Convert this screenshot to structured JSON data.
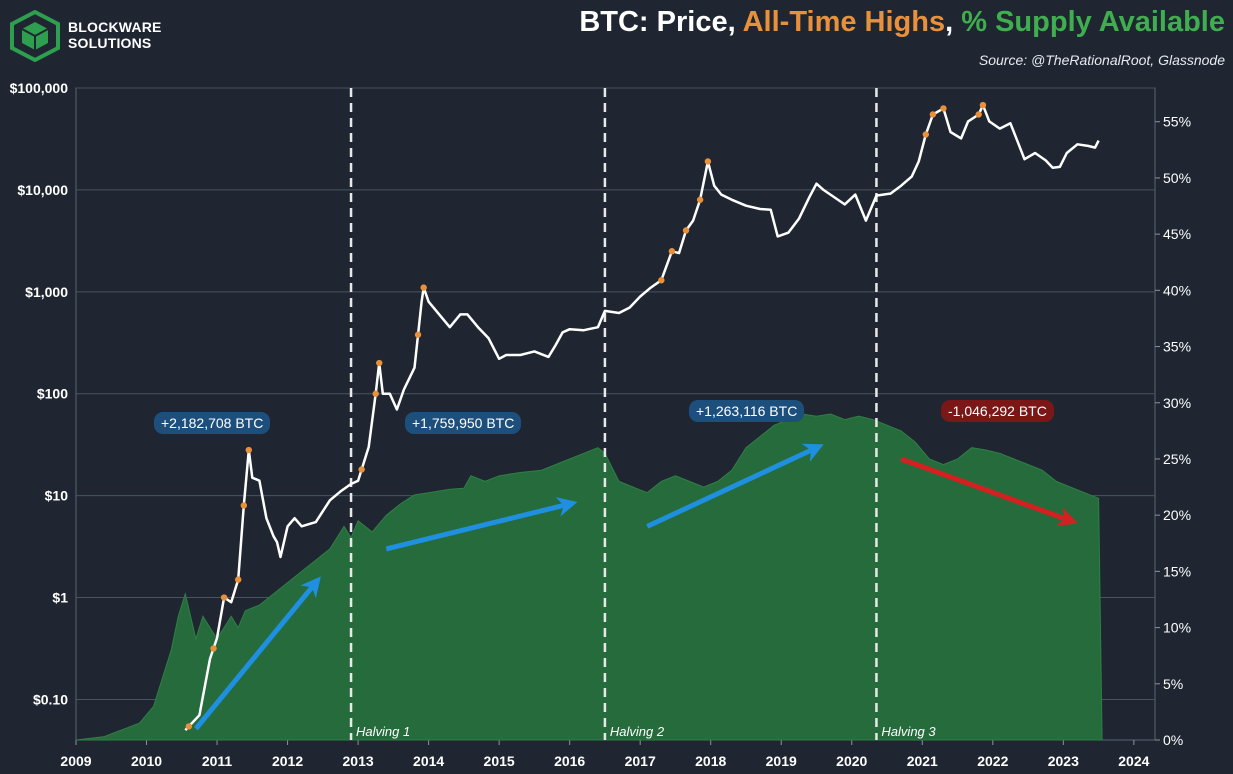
{
  "brand": {
    "line1": "BLOCKWARE",
    "line2": "SOLUTIONS",
    "logo_color": "#2e9e4f"
  },
  "title": {
    "part1": "BTC: Price, ",
    "part2": "All-Time Highs",
    "part3": ", ",
    "part4": "% Supply Available",
    "part1_color": "#ffffff",
    "part2_color": "#e8913a",
    "part4_color": "#3fae4e"
  },
  "source": "Source: @TheRationalRoot, Glassnode",
  "colors": {
    "background": "#1f2631",
    "price_line": "#ffffff",
    "ath_marker": "#e8913a",
    "supply_fill": "#266b3b",
    "grid": "#4a5360",
    "arrow_up": "#1f8fe0",
    "arrow_down": "#d42020",
    "callout_blue": "#1d4f7c",
    "callout_red": "#7b1717"
  },
  "callouts": [
    {
      "text": "+2,182,708 BTC",
      "kind": "gain"
    },
    {
      "text": "+1,759,950 BTC",
      "kind": "gain"
    },
    {
      "text": "+1,263,116 BTC",
      "kind": "gain"
    },
    {
      "text": "-1,046,292 BTC",
      "kind": "loss"
    }
  ],
  "chart_data": {
    "type": "line",
    "x_ticks": [
      "2009",
      "2010",
      "2011",
      "2012",
      "2013",
      "2014",
      "2015",
      "2016",
      "2017",
      "2018",
      "2019",
      "2020",
      "2021",
      "2022",
      "2023",
      "2024"
    ],
    "xlim": [
      2009,
      2024.3
    ],
    "y_left": {
      "scale": "log",
      "ticks": [
        {
          "v": 0.1,
          "label": "$0.10"
        },
        {
          "v": 1,
          "label": "$1"
        },
        {
          "v": 10,
          "label": "$10"
        },
        {
          "v": 100,
          "label": "$100"
        },
        {
          "v": 1000,
          "label": "$1,000"
        },
        {
          "v": 10000,
          "label": "$10,000"
        },
        {
          "v": 100000,
          "label": "$100,000"
        }
      ],
      "ylim": [
        0.04,
        100000
      ]
    },
    "y_right": {
      "scale": "linear",
      "ticks": [
        "0%",
        "5%",
        "10%",
        "15%",
        "20%",
        "25%",
        "30%",
        "35%",
        "40%",
        "45%",
        "50%",
        "55%"
      ],
      "ylim": [
        0,
        58
      ]
    },
    "halvings": [
      {
        "date": 2012.9,
        "label": "Halving 1"
      },
      {
        "date": 2016.5,
        "label": "Halving 2"
      },
      {
        "date": 2020.35,
        "label": "Halving 3"
      }
    ],
    "series": [
      {
        "name": "Price",
        "axis": "left",
        "points": [
          [
            2010.55,
            0.05
          ],
          [
            2010.75,
            0.07
          ],
          [
            2010.9,
            0.25
          ],
          [
            2011.0,
            0.4
          ],
          [
            2011.1,
            1.0
          ],
          [
            2011.2,
            0.9
          ],
          [
            2011.3,
            1.5
          ],
          [
            2011.38,
            8
          ],
          [
            2011.45,
            28
          ],
          [
            2011.5,
            15
          ],
          [
            2011.6,
            14
          ],
          [
            2011.7,
            6
          ],
          [
            2011.8,
            4
          ],
          [
            2011.85,
            3.5
          ],
          [
            2011.9,
            2.5
          ],
          [
            2012.0,
            5
          ],
          [
            2012.1,
            6
          ],
          [
            2012.2,
            5
          ],
          [
            2012.4,
            5.5
          ],
          [
            2012.6,
            9
          ],
          [
            2012.75,
            11
          ],
          [
            2012.9,
            13
          ],
          [
            2013.0,
            14
          ],
          [
            2013.15,
            30
          ],
          [
            2013.25,
            100
          ],
          [
            2013.3,
            200
          ],
          [
            2013.35,
            100
          ],
          [
            2013.45,
            100
          ],
          [
            2013.55,
            70
          ],
          [
            2013.65,
            110
          ],
          [
            2013.8,
            180
          ],
          [
            2013.9,
            800
          ],
          [
            2013.93,
            1100
          ],
          [
            2014.0,
            800
          ],
          [
            2014.15,
            600
          ],
          [
            2014.3,
            450
          ],
          [
            2014.45,
            600
          ],
          [
            2014.55,
            600
          ],
          [
            2014.7,
            450
          ],
          [
            2014.85,
            350
          ],
          [
            2015.0,
            220
          ],
          [
            2015.1,
            240
          ],
          [
            2015.3,
            240
          ],
          [
            2015.5,
            260
          ],
          [
            2015.7,
            230
          ],
          [
            2015.8,
            300
          ],
          [
            2015.9,
            400
          ],
          [
            2016.0,
            430
          ],
          [
            2016.2,
            420
          ],
          [
            2016.4,
            450
          ],
          [
            2016.5,
            650
          ],
          [
            2016.7,
            620
          ],
          [
            2016.85,
            700
          ],
          [
            2017.0,
            900
          ],
          [
            2017.15,
            1100
          ],
          [
            2017.3,
            1300
          ],
          [
            2017.45,
            2500
          ],
          [
            2017.55,
            2400
          ],
          [
            2017.65,
            4000
          ],
          [
            2017.75,
            5000
          ],
          [
            2017.85,
            8000
          ],
          [
            2017.96,
            19000
          ],
          [
            2018.05,
            11000
          ],
          [
            2018.15,
            9000
          ],
          [
            2018.3,
            8000
          ],
          [
            2018.5,
            7000
          ],
          [
            2018.7,
            6500
          ],
          [
            2018.85,
            6400
          ],
          [
            2018.95,
            3500
          ],
          [
            2019.1,
            3800
          ],
          [
            2019.25,
            5200
          ],
          [
            2019.4,
            8500
          ],
          [
            2019.5,
            11500
          ],
          [
            2019.6,
            10000
          ],
          [
            2019.75,
            8500
          ],
          [
            2019.9,
            7200
          ],
          [
            2020.05,
            9000
          ],
          [
            2020.2,
            5000
          ],
          [
            2020.35,
            8800
          ],
          [
            2020.55,
            9200
          ],
          [
            2020.7,
            11000
          ],
          [
            2020.85,
            13500
          ],
          [
            2020.95,
            19000
          ],
          [
            2021.05,
            35000
          ],
          [
            2021.15,
            55000
          ],
          [
            2021.3,
            63000
          ],
          [
            2021.4,
            37000
          ],
          [
            2021.55,
            32000
          ],
          [
            2021.65,
            47000
          ],
          [
            2021.8,
            55000
          ],
          [
            2021.86,
            68000
          ],
          [
            2021.95,
            47000
          ],
          [
            2022.1,
            40000
          ],
          [
            2022.25,
            45000
          ],
          [
            2022.35,
            30000
          ],
          [
            2022.45,
            20000
          ],
          [
            2022.6,
            23000
          ],
          [
            2022.75,
            19500
          ],
          [
            2022.85,
            16500
          ],
          [
            2022.95,
            16800
          ],
          [
            2023.05,
            23000
          ],
          [
            2023.2,
            28000
          ],
          [
            2023.35,
            27000
          ],
          [
            2023.45,
            26000
          ],
          [
            2023.5,
            30500
          ]
        ]
      },
      {
        "name": "% Supply Available",
        "axis": "right",
        "points": [
          [
            2009.0,
            0
          ],
          [
            2009.4,
            0.3
          ],
          [
            2009.9,
            1.5
          ],
          [
            2010.1,
            3
          ],
          [
            2010.2,
            5
          ],
          [
            2010.35,
            8
          ],
          [
            2010.45,
            11
          ],
          [
            2010.55,
            13
          ],
          [
            2010.7,
            9
          ],
          [
            2010.8,
            11
          ],
          [
            2010.9,
            10
          ],
          [
            2011.0,
            9
          ],
          [
            2011.1,
            10
          ],
          [
            2011.2,
            11
          ],
          [
            2011.3,
            10
          ],
          [
            2011.4,
            11.5
          ],
          [
            2011.6,
            12
          ],
          [
            2011.8,
            13
          ],
          [
            2012.0,
            14
          ],
          [
            2012.2,
            15
          ],
          [
            2012.4,
            16
          ],
          [
            2012.6,
            17
          ],
          [
            2012.8,
            19
          ],
          [
            2012.9,
            18
          ],
          [
            2013.0,
            19.5
          ],
          [
            2013.2,
            18.5
          ],
          [
            2013.4,
            20
          ],
          [
            2013.6,
            21
          ],
          [
            2013.8,
            21.8
          ],
          [
            2014.0,
            22
          ],
          [
            2014.3,
            22.3
          ],
          [
            2014.5,
            22.4
          ],
          [
            2014.6,
            23.5
          ],
          [
            2014.8,
            23
          ],
          [
            2015.0,
            23.5
          ],
          [
            2015.3,
            23.8
          ],
          [
            2015.6,
            24
          ],
          [
            2015.8,
            24.5
          ],
          [
            2016.0,
            25
          ],
          [
            2016.2,
            25.5
          ],
          [
            2016.4,
            26
          ],
          [
            2016.5,
            25.5
          ],
          [
            2016.7,
            23
          ],
          [
            2016.9,
            22.5
          ],
          [
            2017.1,
            22
          ],
          [
            2017.3,
            23
          ],
          [
            2017.5,
            23.5
          ],
          [
            2017.7,
            23
          ],
          [
            2017.9,
            22.5
          ],
          [
            2018.1,
            23
          ],
          [
            2018.3,
            24
          ],
          [
            2018.5,
            26
          ],
          [
            2018.7,
            27
          ],
          [
            2018.9,
            28
          ],
          [
            2019.1,
            28.5
          ],
          [
            2019.3,
            29
          ],
          [
            2019.5,
            28.8
          ],
          [
            2019.7,
            29
          ],
          [
            2019.9,
            28.5
          ],
          [
            2020.1,
            28.8
          ],
          [
            2020.3,
            28.5
          ],
          [
            2020.5,
            28
          ],
          [
            2020.7,
            27.5
          ],
          [
            2020.9,
            26.5
          ],
          [
            2021.1,
            25
          ],
          [
            2021.3,
            24.5
          ],
          [
            2021.5,
            25
          ],
          [
            2021.7,
            26
          ],
          [
            2021.9,
            25.8
          ],
          [
            2022.1,
            25.5
          ],
          [
            2022.3,
            25
          ],
          [
            2022.5,
            24.5
          ],
          [
            2022.7,
            24
          ],
          [
            2022.9,
            23
          ],
          [
            2023.1,
            22.5
          ],
          [
            2023.3,
            22
          ],
          [
            2023.5,
            21.5
          ],
          [
            2023.55,
            0
          ]
        ]
      }
    ],
    "ath_markers": [
      2010.6,
      2010.95,
      2011.1,
      2011.3,
      2011.38,
      2011.45,
      2013.05,
      2013.25,
      2013.3,
      2013.85,
      2013.93,
      2017.3,
      2017.45,
      2017.65,
      2017.85,
      2017.96,
      2021.05,
      2021.15,
      2021.3,
      2021.8,
      2021.86
    ],
    "annotations": [
      {
        "from": [
          2010.7,
          1
        ],
        "to": [
          2012.4,
          14
        ],
        "dir": "up"
      },
      {
        "from": [
          2013.4,
          17
        ],
        "to": [
          2016.0,
          21
        ],
        "dir": "up"
      },
      {
        "from": [
          2017.1,
          19
        ],
        "to": [
          2019.5,
          26
        ],
        "dir": "up"
      },
      {
        "from": [
          2020.7,
          25
        ],
        "to": [
          2023.1,
          19.5
        ],
        "dir": "down"
      }
    ]
  }
}
